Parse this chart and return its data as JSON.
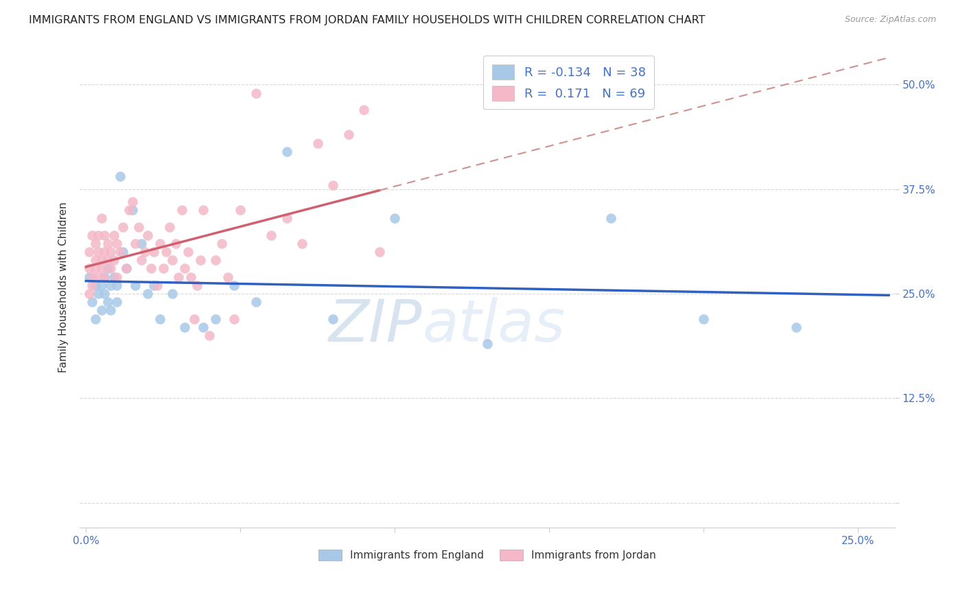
{
  "title": "IMMIGRANTS FROM ENGLAND VS IMMIGRANTS FROM JORDAN FAMILY HOUSEHOLDS WITH CHILDREN CORRELATION CHART",
  "source": "Source: ZipAtlas.com",
  "ylabel": "Family Households with Children",
  "xlim": [
    -0.002,
    0.262
  ],
  "ylim": [
    -0.03,
    0.545
  ],
  "england_color": "#a8c8e8",
  "jordan_color": "#f4b8c8",
  "england_line_color": "#3060c0",
  "jordan_line_color": "#d06070",
  "jordan_dash_color": "#d09090",
  "R_england": -0.134,
  "N_england": 38,
  "R_jordan": 0.171,
  "N_jordan": 69,
  "england_x": [
    0.001,
    0.002,
    0.003,
    0.003,
    0.004,
    0.005,
    0.005,
    0.006,
    0.006,
    0.007,
    0.007,
    0.008,
    0.008,
    0.009,
    0.01,
    0.01,
    0.011,
    0.012,
    0.013,
    0.015,
    0.016,
    0.018,
    0.02,
    0.022,
    0.024,
    0.028,
    0.032,
    0.038,
    0.042,
    0.048,
    0.055,
    0.065,
    0.08,
    0.1,
    0.13,
    0.17,
    0.2,
    0.23
  ],
  "england_y": [
    0.27,
    0.24,
    0.26,
    0.22,
    0.25,
    0.26,
    0.23,
    0.27,
    0.25,
    0.28,
    0.24,
    0.26,
    0.23,
    0.27,
    0.26,
    0.24,
    0.39,
    0.3,
    0.28,
    0.35,
    0.26,
    0.31,
    0.25,
    0.26,
    0.22,
    0.25,
    0.21,
    0.21,
    0.22,
    0.26,
    0.24,
    0.42,
    0.22,
    0.34,
    0.19,
    0.34,
    0.22,
    0.21
  ],
  "jordan_x": [
    0.001,
    0.001,
    0.001,
    0.002,
    0.002,
    0.002,
    0.003,
    0.003,
    0.003,
    0.004,
    0.004,
    0.004,
    0.005,
    0.005,
    0.005,
    0.006,
    0.006,
    0.006,
    0.007,
    0.007,
    0.008,
    0.008,
    0.009,
    0.009,
    0.01,
    0.01,
    0.011,
    0.012,
    0.013,
    0.014,
    0.015,
    0.016,
    0.017,
    0.018,
    0.019,
    0.02,
    0.021,
    0.022,
    0.023,
    0.024,
    0.025,
    0.026,
    0.027,
    0.028,
    0.029,
    0.03,
    0.031,
    0.032,
    0.033,
    0.034,
    0.035,
    0.036,
    0.037,
    0.038,
    0.04,
    0.042,
    0.044,
    0.046,
    0.048,
    0.05,
    0.055,
    0.06,
    0.065,
    0.07,
    0.075,
    0.08,
    0.085,
    0.09,
    0.095
  ],
  "jordan_y": [
    0.28,
    0.3,
    0.25,
    0.27,
    0.32,
    0.26,
    0.29,
    0.31,
    0.28,
    0.3,
    0.27,
    0.32,
    0.34,
    0.29,
    0.28,
    0.32,
    0.3,
    0.27,
    0.31,
    0.29,
    0.3,
    0.28,
    0.32,
    0.29,
    0.31,
    0.27,
    0.3,
    0.33,
    0.28,
    0.35,
    0.36,
    0.31,
    0.33,
    0.29,
    0.3,
    0.32,
    0.28,
    0.3,
    0.26,
    0.31,
    0.28,
    0.3,
    0.33,
    0.29,
    0.31,
    0.27,
    0.35,
    0.28,
    0.3,
    0.27,
    0.22,
    0.26,
    0.29,
    0.35,
    0.2,
    0.29,
    0.31,
    0.27,
    0.22,
    0.35,
    0.49,
    0.32,
    0.34,
    0.31,
    0.43,
    0.38,
    0.44,
    0.47,
    0.3
  ],
  "watermark_zip": "ZIP",
  "watermark_atlas": "atlas",
  "bottom_legend_labels": [
    "Immigrants from England",
    "Immigrants from Jordan"
  ],
  "x_tick_positions": [
    0.0,
    0.05,
    0.1,
    0.15,
    0.2,
    0.25
  ],
  "x_tick_labels": [
    "0.0%",
    "",
    "",
    "",
    "",
    "25.0%"
  ],
  "y_tick_positions": [
    0.0,
    0.125,
    0.25,
    0.375,
    0.5
  ],
  "y_tick_labels_right": [
    "",
    "12.5%",
    "25.0%",
    "37.5%",
    "50.0%"
  ]
}
